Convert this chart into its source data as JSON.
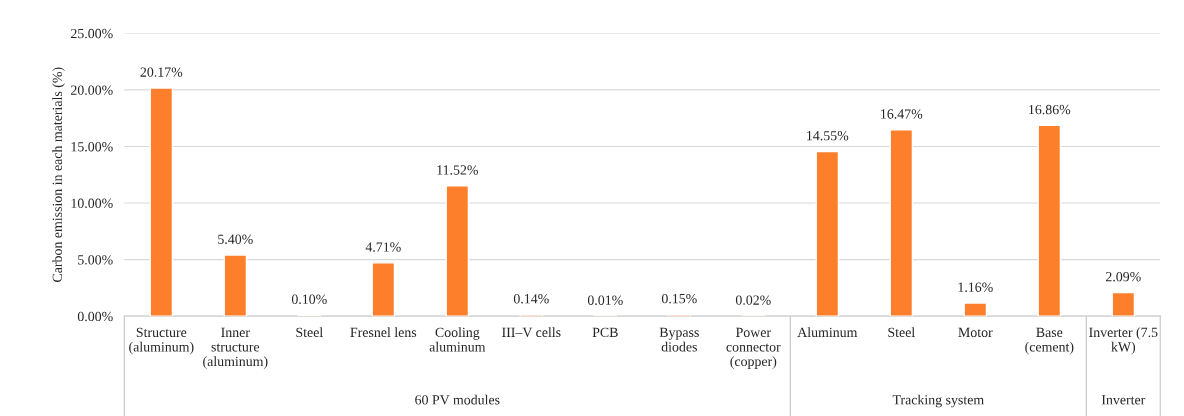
{
  "chart_data": {
    "type": "bar",
    "ylabel": "Carbon emission in each materials (%)",
    "categories": [
      "Structure\n(aluminum)",
      "Inner\nstructure\n(aluminum)",
      "Steel",
      "Fresnel lens",
      "Cooling\naluminum",
      "III–V cells",
      "PCB",
      "Bypass\ndiodes",
      "Power\nconnector\n(copper)",
      "Aluminum",
      "Steel",
      "Motor",
      "Base\n(cement)",
      "Inverter (7.5\nkW)"
    ],
    "values": [
      20.17,
      5.4,
      0.1,
      4.71,
      11.52,
      0.14,
      0.01,
      0.15,
      0.02,
      14.55,
      16.47,
      1.16,
      16.86,
      2.09
    ],
    "value_labels": [
      "20.17%",
      "5.40%",
      "0.10%",
      "4.71%",
      "11.52%",
      "0.14%",
      "0.01%",
      "0.15%",
      "0.02%",
      "14.55%",
      "16.47%",
      "1.16%",
      "16.86%",
      "2.09%"
    ],
    "color": "#fd7f2c",
    "ylim": [
      0,
      25
    ],
    "yticks": [
      {
        "value": 0,
        "label": "0.00%"
      },
      {
        "value": 5,
        "label": "5.00%"
      },
      {
        "value": 10,
        "label": "10.00%"
      },
      {
        "value": 15,
        "label": "15.00%"
      },
      {
        "value": 20,
        "label": "20.00%"
      },
      {
        "value": 25,
        "label": "25.00%"
      }
    ],
    "grid": "y",
    "annotations": [
      "60 PV modules",
      "Tracking system",
      "Inverter"
    ]
  }
}
